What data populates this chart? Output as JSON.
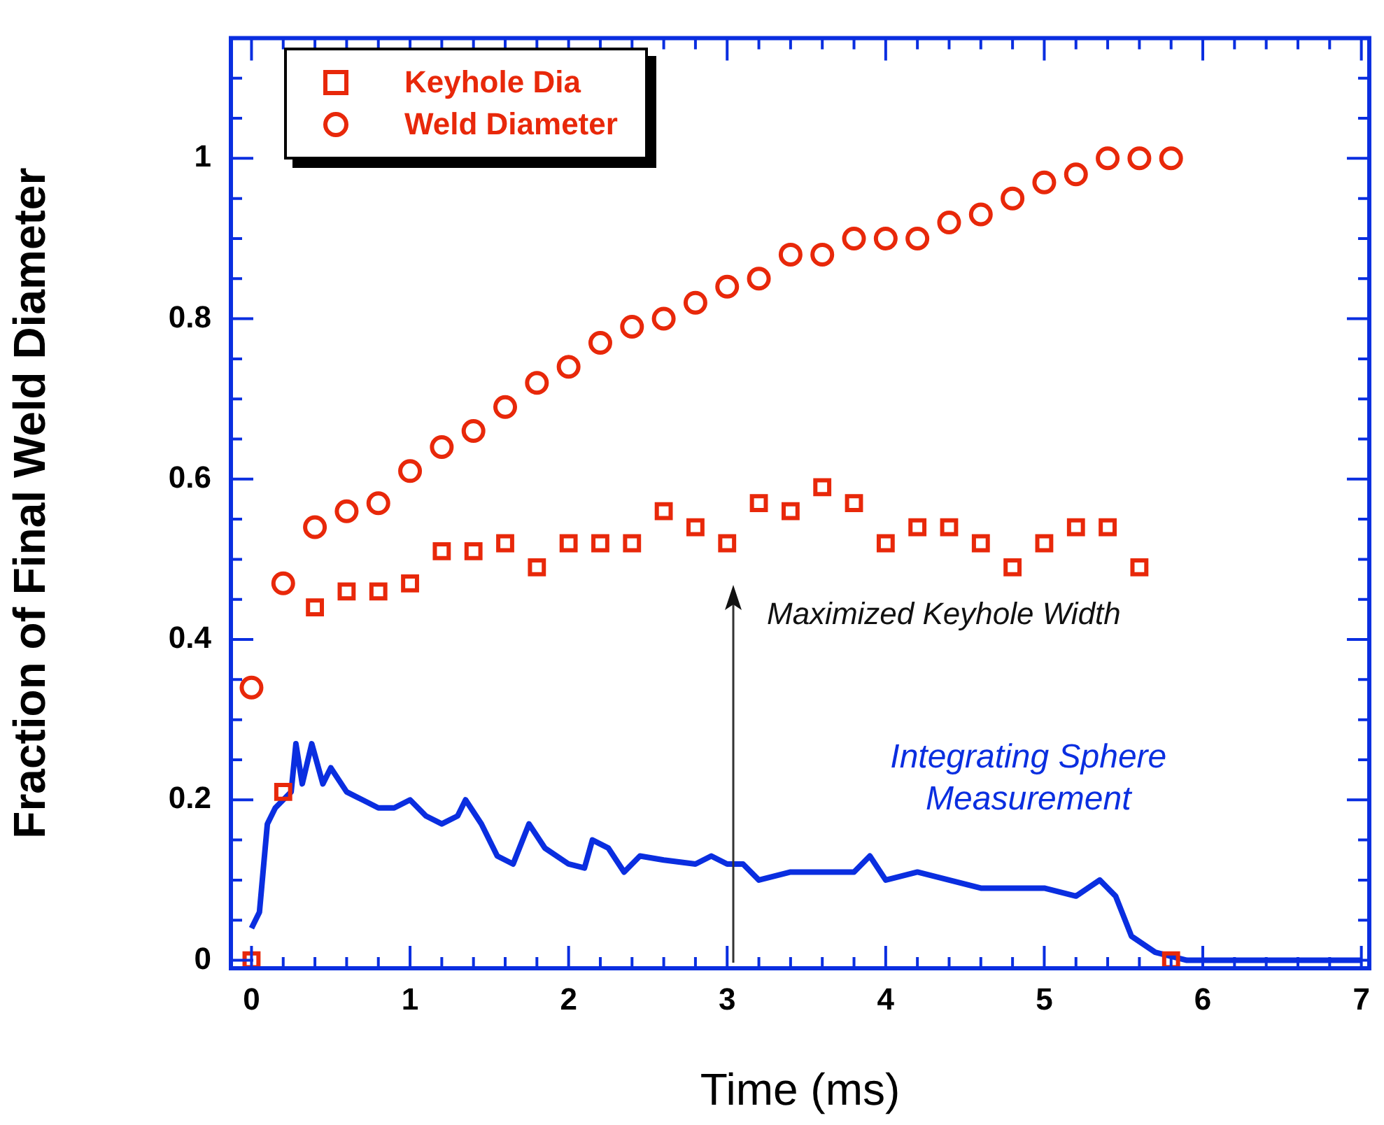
{
  "chart_data": {
    "type": "scatter",
    "xlabel": "Time (ms)",
    "ylabel": "Fraction of Final Weld Diameter",
    "xlim": [
      -0.13,
      7.05
    ],
    "ylim": [
      -0.01,
      1.15
    ],
    "xticks": [
      0,
      1,
      2,
      3,
      4,
      5,
      6,
      7
    ],
    "yticks": [
      0,
      0.2,
      0.4,
      0.6,
      0.8,
      1
    ],
    "legend": "top left",
    "annotations": [
      "Maximized Keyhole Width"
    ],
    "series": [
      {
        "name": "Keyhole Dia",
        "marker": "square",
        "color": "#e8280a",
        "x": [
          0,
          0.2,
          0.4,
          0.6,
          0.8,
          1.0,
          1.2,
          1.4,
          1.6,
          1.8,
          2.0,
          2.2,
          2.4,
          2.6,
          2.8,
          3.0,
          3.2,
          3.4,
          3.6,
          3.8,
          4.0,
          4.2,
          4.4,
          4.6,
          4.8,
          5.0,
          5.2,
          5.4,
          5.6,
          5.8
        ],
        "values": [
          0,
          0.21,
          0.44,
          0.46,
          0.46,
          0.47,
          0.51,
          0.51,
          0.52,
          0.49,
          0.52,
          0.52,
          0.52,
          0.56,
          0.54,
          0.52,
          0.57,
          0.56,
          0.59,
          0.57,
          0.52,
          0.54,
          0.54,
          0.52,
          0.49,
          0.52,
          0.54,
          0.54,
          0.49,
          0
        ]
      },
      {
        "name": "Weld Diameter",
        "marker": "circle",
        "color": "#e8280a",
        "x": [
          0,
          0.2,
          0.4,
          0.6,
          0.8,
          1.0,
          1.2,
          1.4,
          1.6,
          1.8,
          2.0,
          2.2,
          2.4,
          2.6,
          2.8,
          3.0,
          3.2,
          3.4,
          3.6,
          3.8,
          4.0,
          4.2,
          4.4,
          4.6,
          4.8,
          5.0,
          5.2,
          5.4,
          5.6,
          5.8
        ],
        "values": [
          0.34,
          0.47,
          0.54,
          0.56,
          0.57,
          0.61,
          0.64,
          0.66,
          0.69,
          0.72,
          0.74,
          0.77,
          0.79,
          0.8,
          0.82,
          0.84,
          0.85,
          0.88,
          0.88,
          0.9,
          0.9,
          0.9,
          0.92,
          0.93,
          0.95,
          0.97,
          0.98,
          1,
          1,
          1
        ]
      },
      {
        "name": "Integrating Sphere Measurement",
        "type": "line",
        "marker": "none",
        "color": "#0a2ee0",
        "x": [
          0,
          0.05,
          0.1,
          0.15,
          0.2,
          0.25,
          0.28,
          0.32,
          0.38,
          0.45,
          0.5,
          0.6,
          0.7,
          0.8,
          0.9,
          1.0,
          1.1,
          1.2,
          1.3,
          1.35,
          1.45,
          1.55,
          1.65,
          1.75,
          1.85,
          2.0,
          2.1,
          2.15,
          2.25,
          2.35,
          2.45,
          2.6,
          2.8,
          2.9,
          3.0,
          3.1,
          3.2,
          3.4,
          3.6,
          3.8,
          3.9,
          4.0,
          4.2,
          4.4,
          4.6,
          4.8,
          5.0,
          5.2,
          5.35,
          5.45,
          5.55,
          5.7,
          5.9,
          7.0
        ],
        "values": [
          0.04,
          0.06,
          0.17,
          0.19,
          0.2,
          0.21,
          0.27,
          0.22,
          0.27,
          0.22,
          0.24,
          0.21,
          0.2,
          0.19,
          0.19,
          0.2,
          0.18,
          0.17,
          0.18,
          0.2,
          0.17,
          0.13,
          0.12,
          0.17,
          0.14,
          0.12,
          0.115,
          0.15,
          0.14,
          0.11,
          0.13,
          0.125,
          0.12,
          0.13,
          0.12,
          0.12,
          0.1,
          0.11,
          0.11,
          0.11,
          0.13,
          0.1,
          0.11,
          0.1,
          0.09,
          0.09,
          0.09,
          0.08,
          0.1,
          0.08,
          0.03,
          0.01,
          0,
          0
        ]
      }
    ]
  }
}
